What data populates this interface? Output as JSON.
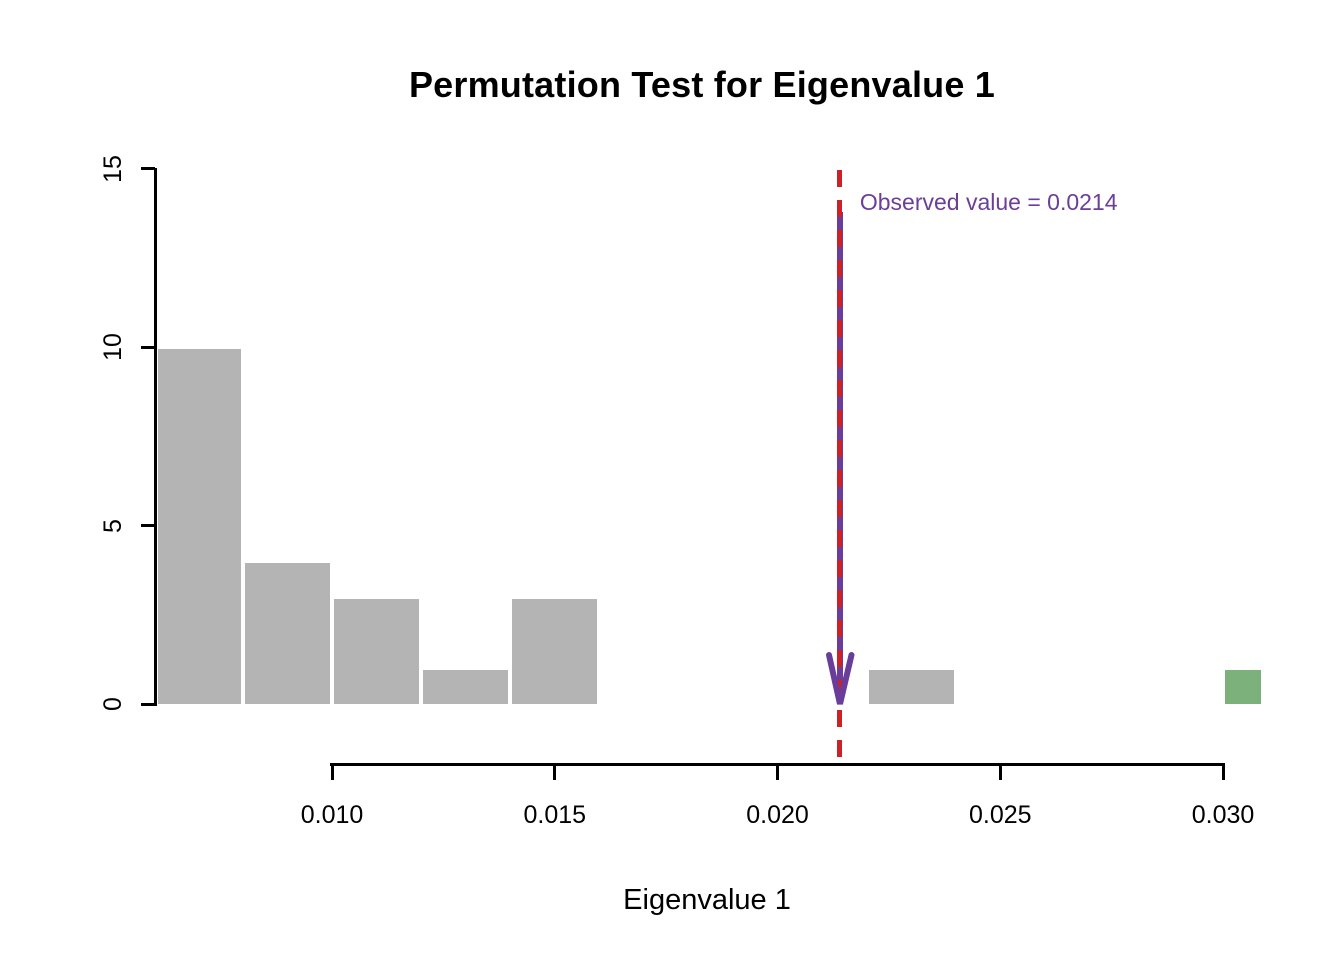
{
  "chart_data": {
    "type": "bar",
    "subtype": "histogram",
    "title": "Permutation Test for Eigenvalue 1",
    "xlabel": "Eigenvalue 1",
    "ylabel": "",
    "xlim": [
      0.006,
      0.031
    ],
    "ylim": [
      0,
      15
    ],
    "grid": false,
    "x_ticks": [
      0.01,
      0.015,
      0.02,
      0.025,
      0.03
    ],
    "x_tick_labels": [
      "0.010",
      "0.015",
      "0.020",
      "0.025",
      "0.030"
    ],
    "y_ticks": [
      0,
      5,
      10,
      15
    ],
    "y_tick_labels": [
      "0",
      "5",
      "10",
      "15"
    ],
    "bins": [
      {
        "x0": 0.006,
        "x1": 0.008,
        "count": 10,
        "color": "#b4b4b4"
      },
      {
        "x0": 0.008,
        "x1": 0.01,
        "count": 4,
        "color": "#b4b4b4"
      },
      {
        "x0": 0.01,
        "x1": 0.012,
        "count": 3,
        "color": "#b4b4b4"
      },
      {
        "x0": 0.012,
        "x1": 0.014,
        "count": 1,
        "color": "#b4b4b4"
      },
      {
        "x0": 0.014,
        "x1": 0.016,
        "count": 3,
        "color": "#b4b4b4"
      },
      {
        "x0": 0.022,
        "x1": 0.024,
        "count": 1,
        "color": "#b4b4b4"
      },
      {
        "x0": 0.03,
        "x1": 0.0309,
        "count": 1,
        "color": "#7cb17c"
      }
    ],
    "bar_border_color": "#ffffff",
    "observed": {
      "value": 0.0214,
      "line_color": "#cb2127",
      "line_style": "dashed",
      "arrow_color": "#6a3d9a"
    },
    "annotation": {
      "text": "Observed value = 0.0214",
      "color": "#6b3e98"
    }
  }
}
